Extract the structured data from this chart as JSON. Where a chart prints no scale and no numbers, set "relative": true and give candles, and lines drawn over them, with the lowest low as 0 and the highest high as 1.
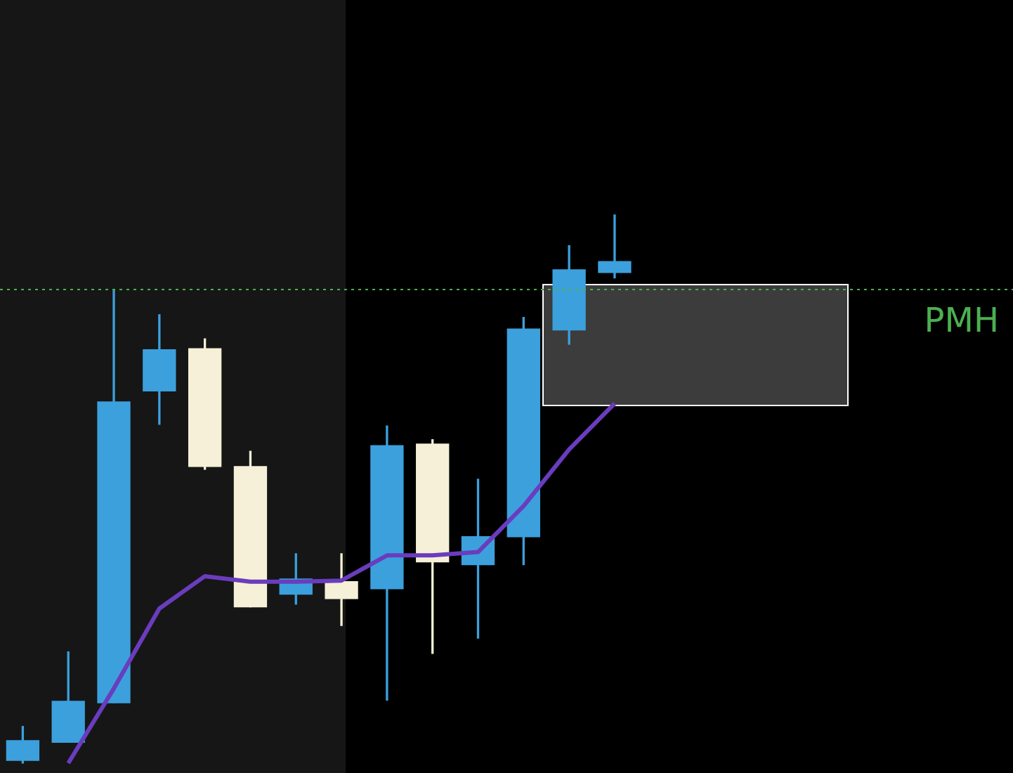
{
  "chart_data": {
    "type": "candlestick",
    "relative": true,
    "categories": [
      null,
      null,
      null,
      null,
      null,
      null,
      null,
      null,
      null,
      null,
      null,
      null,
      null,
      null
    ],
    "ohlc": [
      [
        0.005,
        0.067,
        0,
        0.041
      ],
      [
        0.038,
        0.203,
        0.038,
        0.113
      ],
      [
        0.11,
        0.862,
        0.11,
        0.659
      ],
      [
        0.679,
        0.818,
        0.618,
        0.754
      ],
      [
        0.756,
        0.774,
        0.536,
        0.541
      ],
      [
        0.541,
        0.569,
        0.285,
        0.285
      ],
      [
        0.308,
        0.382,
        0.29,
        0.336
      ],
      [
        0.331,
        0.382,
        0.251,
        0.3
      ],
      [
        0.318,
        0.615,
        0.115,
        0.579
      ],
      [
        0.582,
        0.59,
        0.2,
        0.367
      ],
      [
        0.362,
        0.518,
        0.228,
        0.413
      ],
      [
        0.413,
        0.813,
        0.362,
        0.792
      ],
      [
        0.79,
        0.944,
        0.764,
        0.9
      ],
      [
        0.895,
        1,
        0.885,
        0.915
      ]
    ],
    "colors": [
      "#3ca0dc",
      "#3ca0dc",
      "#3ca0dc",
      "#3ca0dc",
      "#f5f0d7",
      "#f5f0d7",
      "#3ca0dc",
      "#f5f0d7",
      "#3ca0dc",
      "#f5f0d7",
      "#3ca0dc",
      "#3ca0dc",
      "#3ca0dc",
      "#3ca0dc"
    ],
    "series": [
      {
        "type": "line",
        "color": "#6a3cbe",
        "values": [
          null,
          0,
          0.136,
          0.282,
          0.341,
          0.331,
          0.331,
          0.333,
          0.379,
          0.379,
          0.385,
          0.469,
          0.572,
          0.656
        ]
      }
    ],
    "ref_lines": [
      {
        "axis": "y",
        "value": 0.864,
        "label": "PMH",
        "color": "#4caf50",
        "line_style": "dotted"
      }
    ]
  }
}
